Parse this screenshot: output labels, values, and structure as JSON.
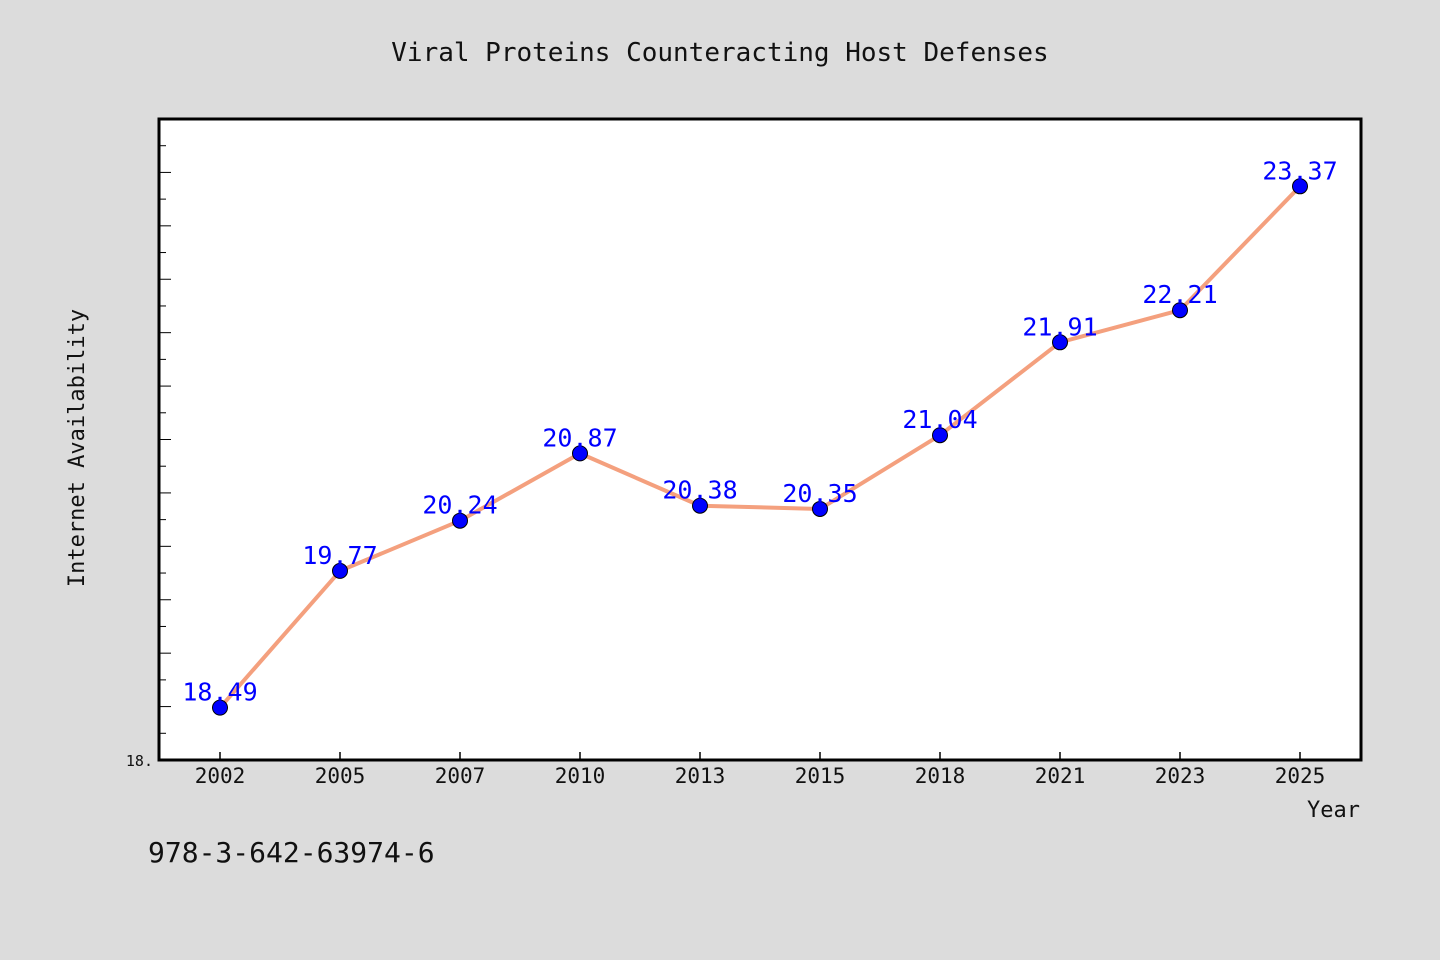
{
  "footer": {
    "isbn": "978-3-642-63974-6"
  },
  "chart_data": {
    "type": "line",
    "title": "Viral Proteins Counteracting Host Defenses",
    "xlabel": "Year",
    "ylabel": "Internet Availability",
    "categories": [
      "2002",
      "2005",
      "2007",
      "2010",
      "2013",
      "2015",
      "2018",
      "2021",
      "2023",
      "2025"
    ],
    "series": [
      {
        "values": [
          18.49,
          19.77,
          20.24,
          20.87,
          20.38,
          20.35,
          21.04,
          21.91,
          22.21,
          23.37
        ],
        "data_labels": [
          "18.49",
          "19.77",
          "20.24",
          "20.87",
          "20.38",
          "20.35",
          "21.04",
          "21.91",
          "22.21",
          "23.37"
        ],
        "line_color": "#f4a07e",
        "marker_color": "#0000ff"
      }
    ],
    "ylim": [
      18.0,
      24.0
    ],
    "y_tick_labels": [
      "18."
    ],
    "grid": false,
    "legend": "none",
    "colors": {
      "background": "#dcdcdc",
      "plot_background": "#ffffff",
      "label_color": "#0000ff"
    }
  }
}
